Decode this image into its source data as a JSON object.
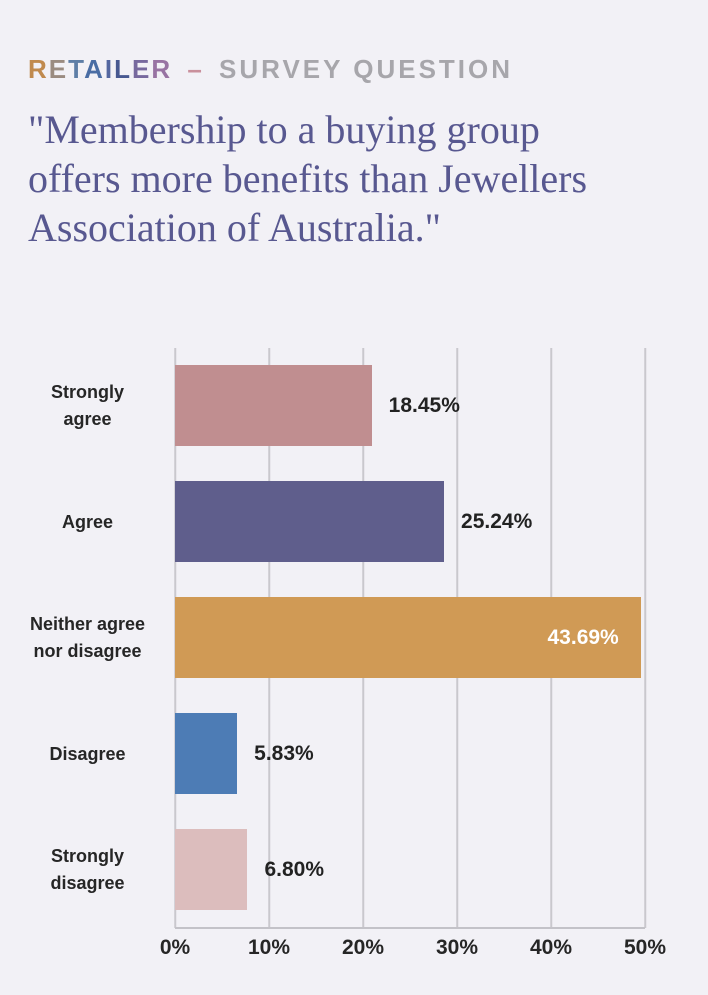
{
  "page": {
    "background": "#f2f1f6"
  },
  "header": {
    "brand_word": "RETAILER",
    "brand_letters": [
      {
        "ch": "R",
        "color": "#c08a4e"
      },
      {
        "ch": "E",
        "color": "#9a8b80"
      },
      {
        "ch": "T",
        "color": "#5e7ea6"
      },
      {
        "ch": "A",
        "color": "#4a6da4"
      },
      {
        "ch": "I",
        "color": "#5467a0"
      },
      {
        "ch": "L",
        "color": "#475890"
      },
      {
        "ch": "E",
        "color": "#77699e"
      },
      {
        "ch": "R",
        "color": "#9873a3"
      }
    ],
    "separator": {
      "ch": "–",
      "color": "#c9909c"
    },
    "subtitle": {
      "text": "SURVEY QUESTION",
      "color": "#a7a6ab"
    }
  },
  "title": {
    "text": "\"Membership to a buying group offers more benefits than Jewellers Association of Australia.\"",
    "lines": [
      "\"Membership to a buying group",
      "offers more benefits than Jewellers",
      "Association of Australia.\""
    ],
    "color": "#585890"
  },
  "chart_data": {
    "type": "bar",
    "orientation": "horizontal",
    "title": "\"Membership to a buying group offers more benefits than Jewellers Association of Australia.\"",
    "categories": [
      "Strongly agree",
      "Agree",
      "Neither agree nor disagree",
      "Disagree",
      "Strongly disagree"
    ],
    "category_lines": [
      [
        "Strongly",
        "agree"
      ],
      [
        "Agree"
      ],
      [
        "Neither agree",
        "nor disagree"
      ],
      [
        "Disagree"
      ],
      [
        "Strongly",
        "disagree"
      ]
    ],
    "values": [
      18.45,
      25.24,
      43.69,
      5.83,
      6.8
    ],
    "value_labels": [
      "18.45%",
      "25.24%",
      "43.69%",
      "5.83%",
      "6.80%"
    ],
    "bar_colors": [
      "#c08e90",
      "#5f5e8c",
      "#d09a55",
      "#4d7cb5",
      "#dcbdbd"
    ],
    "value_label_placement": [
      "outside",
      "outside",
      "inside",
      "outside",
      "outside"
    ],
    "value_label_colors": [
      "#222222",
      "#222222",
      "#ffffff",
      "#222222",
      "#222222"
    ],
    "xlabel": "",
    "ylabel": "",
    "xlim": [
      0,
      50
    ],
    "x_ticks": [
      "0%",
      "10%",
      "20%",
      "30%",
      "40%",
      "50%"
    ],
    "x_tick_values": [
      0,
      10,
      20,
      30,
      40,
      50
    ],
    "grid": "vertical",
    "legend": "none",
    "colors": {
      "gridline": "#c9c8cd",
      "axis_line": "#c3c2c8",
      "category_label": "#262626",
      "tick_label": "#262626"
    }
  }
}
